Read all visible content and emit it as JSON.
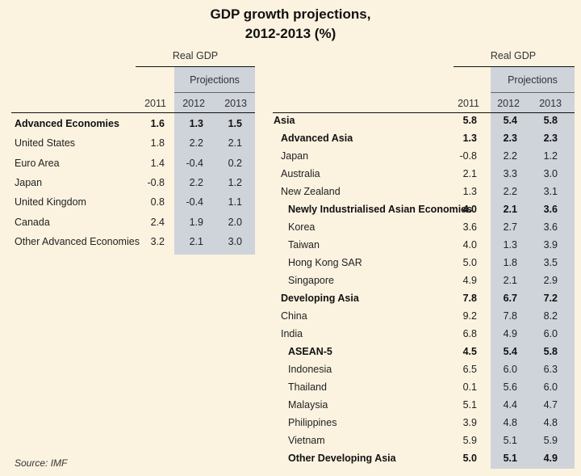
{
  "title": {
    "line1": "GDP growth projections,",
    "line2": "2012-2013 (%)"
  },
  "left_table": {
    "header": "Real GDP",
    "projections_label": "Projections",
    "years": [
      "2011",
      "2012",
      "2013"
    ],
    "rows": [
      {
        "label": "Advanced Economies",
        "v2011": "1.6",
        "v2012": "1.3",
        "v2013": "1.5",
        "bold": true
      },
      {
        "label": "United States",
        "v2011": "1.8",
        "v2012": "2.2",
        "v2013": "2.1",
        "bold": false
      },
      {
        "label": "Euro Area",
        "v2011": "1.4",
        "v2012": "-0.4",
        "v2013": "0.2",
        "bold": false
      },
      {
        "label": "Japan",
        "v2011": "-0.8",
        "v2012": "2.2",
        "v2013": "1.2",
        "bold": false
      },
      {
        "label": "United Kingdom",
        "v2011": "0.8",
        "v2012": "-0.4",
        "v2013": "1.1",
        "bold": false
      },
      {
        "label": "Canada",
        "v2011": "2.4",
        "v2012": "1.9",
        "v2013": "2.0",
        "bold": false
      },
      {
        "label": "Other Advanced Economies",
        "v2011": "3.2",
        "v2012": "2.1",
        "v2013": "3.0",
        "bold": false
      }
    ]
  },
  "right_table": {
    "header": "Real GDP",
    "projections_label": "Projections",
    "years": [
      "2011",
      "2012",
      "2013"
    ],
    "rows": [
      {
        "label": "Asia",
        "v2011": "5.8",
        "v2012": "5.4",
        "v2013": "5.8",
        "bold": true,
        "level": 0
      },
      {
        "label": "Advanced Asia",
        "v2011": "1.3",
        "v2012": "2.3",
        "v2013": "2.3",
        "bold": true,
        "level": 1
      },
      {
        "label": "Japan",
        "v2011": "-0.8",
        "v2012": "2.2",
        "v2013": "1.2",
        "bold": false,
        "level": 1
      },
      {
        "label": "Australia",
        "v2011": "2.1",
        "v2012": "3.3",
        "v2013": "3.0",
        "bold": false,
        "level": 1
      },
      {
        "label": "New Zealand",
        "v2011": "1.3",
        "v2012": "2.2",
        "v2013": "3.1",
        "bold": false,
        "level": 1
      },
      {
        "label": "Newly Industrialised Asian Economies",
        "v2011": "4.0",
        "v2012": "2.1",
        "v2013": "3.6",
        "bold": true,
        "level": 2
      },
      {
        "label": "Korea",
        "v2011": "3.6",
        "v2012": "2.7",
        "v2013": "3.6",
        "bold": false,
        "level": 2
      },
      {
        "label": "Taiwan",
        "v2011": "4.0",
        "v2012": "1.3",
        "v2013": "3.9",
        "bold": false,
        "level": 2
      },
      {
        "label": "Hong Kong SAR",
        "v2011": "5.0",
        "v2012": "1.8",
        "v2013": "3.5",
        "bold": false,
        "level": 2
      },
      {
        "label": "Singapore",
        "v2011": "4.9",
        "v2012": "2.1",
        "v2013": "2.9",
        "bold": false,
        "level": 2
      },
      {
        "label": "Developing Asia",
        "v2011": "7.8",
        "v2012": "6.7",
        "v2013": "7.2",
        "bold": true,
        "level": 1
      },
      {
        "label": "China",
        "v2011": "9.2",
        "v2012": "7.8",
        "v2013": "8.2",
        "bold": false,
        "level": 1
      },
      {
        "label": "India",
        "v2011": "6.8",
        "v2012": "4.9",
        "v2013": "6.0",
        "bold": false,
        "level": 1
      },
      {
        "label": "ASEAN-5",
        "v2011": "4.5",
        "v2012": "5.4",
        "v2013": "5.8",
        "bold": true,
        "level": 2
      },
      {
        "label": "Indonesia",
        "v2011": "6.5",
        "v2012": "6.0",
        "v2013": "6.3",
        "bold": false,
        "level": 2
      },
      {
        "label": "Thailand",
        "v2011": "0.1",
        "v2012": "5.6",
        "v2013": "6.0",
        "bold": false,
        "level": 2
      },
      {
        "label": "Malaysia",
        "v2011": "5.1",
        "v2012": "4.4",
        "v2013": "4.7",
        "bold": false,
        "level": 2
      },
      {
        "label": "Philippines",
        "v2011": "3.9",
        "v2012": "4.8",
        "v2013": "4.8",
        "bold": false,
        "level": 2
      },
      {
        "label": "Vietnam",
        "v2011": "5.9",
        "v2012": "5.1",
        "v2013": "5.9",
        "bold": false,
        "level": 2
      },
      {
        "label": "Other Developing Asia",
        "v2011": "5.0",
        "v2012": "5.1",
        "v2013": "4.9",
        "bold": true,
        "level": 2
      }
    ]
  },
  "source": "Source: IMF"
}
